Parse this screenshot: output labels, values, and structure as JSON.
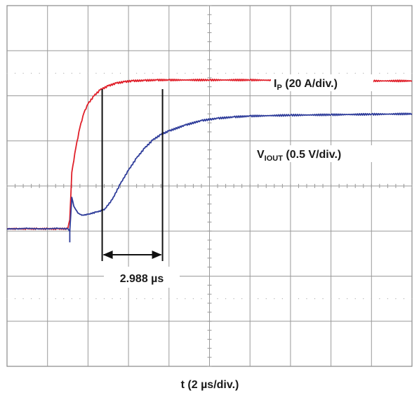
{
  "chart_data": {
    "type": "line",
    "xlabel": "t (2 µs/div.)",
    "x_divisions": 10,
    "y_divisions": 8,
    "grid": true,
    "series": [
      {
        "label_main": "I",
        "label_sub": "P",
        "label_tail": " (20 A/div.)",
        "color": "#e0202a",
        "x": [
          0,
          0.25,
          0.5,
          0.75,
          1.0,
          1.25,
          1.5,
          1.55,
          1.6,
          1.7,
          1.8,
          1.9,
          2.0,
          2.15,
          2.3,
          2.5,
          2.7,
          2.9,
          3.1,
          3.4,
          3.7,
          4.0,
          5,
          6,
          7,
          8,
          9,
          10
        ],
        "y": [
          3.05,
          3.05,
          3.05,
          3.05,
          3.05,
          3.05,
          3.05,
          3.25,
          4.3,
          4.85,
          5.3,
          5.62,
          5.82,
          6.0,
          6.13,
          6.22,
          6.28,
          6.31,
          6.33,
          6.34,
          6.35,
          6.35,
          6.35,
          6.35,
          6.34,
          6.34,
          6.33,
          6.33
        ]
      },
      {
        "label_main": "V",
        "label_sub": "IOUT",
        "label_tail": " (0.5 V/div.)",
        "color": "#2e3c9a",
        "x": [
          0,
          0.25,
          0.5,
          0.75,
          1.0,
          1.25,
          1.5,
          1.55,
          1.6,
          1.65,
          1.75,
          1.85,
          2.0,
          2.2,
          2.4,
          2.6,
          2.8,
          3.0,
          3.2,
          3.4,
          3.6,
          3.8,
          4.0,
          4.4,
          4.8,
          5.2,
          5.6,
          6,
          7,
          8,
          9,
          10
        ],
        "y": [
          3.05,
          3.05,
          3.06,
          3.05,
          3.05,
          3.06,
          3.05,
          3.0,
          3.75,
          3.55,
          3.4,
          3.35,
          3.37,
          3.42,
          3.47,
          3.7,
          4.05,
          4.35,
          4.62,
          4.84,
          5.02,
          5.14,
          5.22,
          5.35,
          5.45,
          5.5,
          5.53,
          5.55,
          5.57,
          5.58,
          5.59,
          5.6
        ]
      }
    ],
    "annotation": {
      "text": "2.988 µs",
      "x_start": 2.35,
      "x_end": 3.84
    }
  }
}
